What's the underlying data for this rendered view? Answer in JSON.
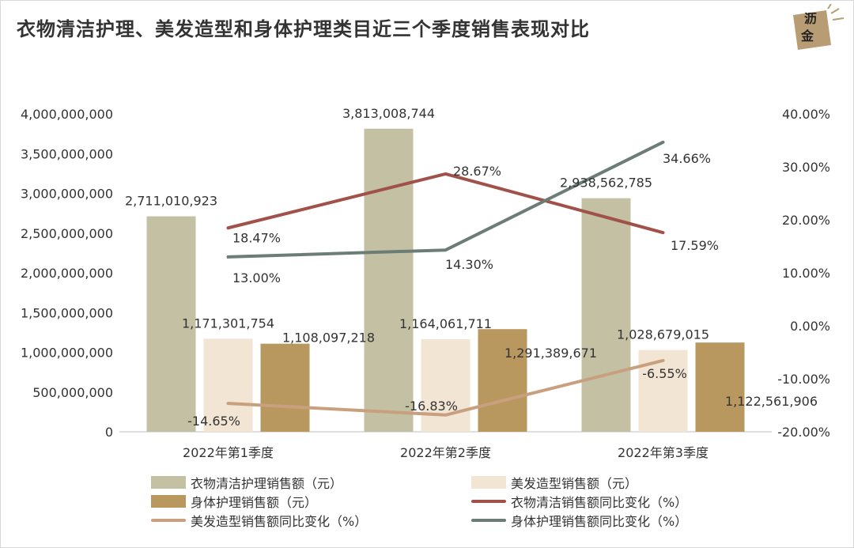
{
  "title": "衣物清洁护理、美发造型和身体护理类目近三个季度销售表现对比",
  "logo": {
    "text_top": "沥",
    "text_bottom": "金"
  },
  "colors": {
    "bar1": "#c3c0a3",
    "bar2": "#f2e5d4",
    "bar3": "#b8985f",
    "line1": "#a0524a",
    "line2": "#c9a07f",
    "line3": "#6b7d74",
    "text": "#333333",
    "axis": "#bfbfbf"
  },
  "chart_data": {
    "type": "bar+line",
    "title": "衣物清洁护理、美发造型和身体护理类目近三个季度销售表现对比",
    "categories": [
      "2022年第1季度",
      "2022年第2季度",
      "2022年第3季度"
    ],
    "y_left": {
      "min": 0,
      "max": 4000000000,
      "step": 500000000,
      "tick_labels": [
        "0",
        "500,000,000",
        "1,000,000,000",
        "1,500,000,000",
        "2,000,000,000",
        "2,500,000,000",
        "3,000,000,000",
        "3,500,000,000",
        "4,000,000,000"
      ]
    },
    "y_right": {
      "min": -20,
      "max": 40,
      "step": 10,
      "tick_labels": [
        "-20.00%",
        "-10.00%",
        "0.00%",
        "10.00%",
        "20.00%",
        "30.00%",
        "40.00%"
      ]
    },
    "bar_series": [
      {
        "key": "bar1",
        "name": "衣物清洁护理销售额（元）",
        "values": [
          2711010923,
          3813008744,
          2938562785
        ],
        "labels": [
          "2,711,010,923",
          "3,813,008,744",
          "2,938,562,785"
        ]
      },
      {
        "key": "bar2",
        "name": "美发造型销售额（元）",
        "values": [
          1171301754,
          1164061711,
          1028679015
        ],
        "labels": [
          "1,171,301,754",
          "1,164,061,711",
          "1,028,679,015"
        ]
      },
      {
        "key": "bar3",
        "name": "身体护理销售额（元）",
        "values": [
          1108097218,
          1291389671,
          1122561906
        ],
        "labels": [
          "1,108,097,218",
          "1,291,389,671",
          "1,122,561,906"
        ]
      }
    ],
    "line_series": [
      {
        "key": "line1",
        "name": "衣物清洁销售额同比变化（%）",
        "values": [
          18.47,
          28.67,
          17.59
        ],
        "labels": [
          "18.47%",
          "28.67%",
          "17.59%"
        ]
      },
      {
        "key": "line2",
        "name": "美发造型销售额同比变化（%）",
        "values": [
          -14.65,
          -16.83,
          -6.55
        ],
        "labels": [
          "-14.65%",
          "-16.83%",
          "-6.55%"
        ]
      },
      {
        "key": "line3",
        "name": "身体护理销售额同比变化（%）",
        "values": [
          13.0,
          14.3,
          34.66
        ],
        "labels": [
          "13.00%",
          "14.30%",
          "34.66%"
        ]
      }
    ],
    "legend": {
      "position": "bottom",
      "order": [
        "bar1",
        "bar2",
        "bar3",
        "line1",
        "line2",
        "line3"
      ]
    }
  }
}
